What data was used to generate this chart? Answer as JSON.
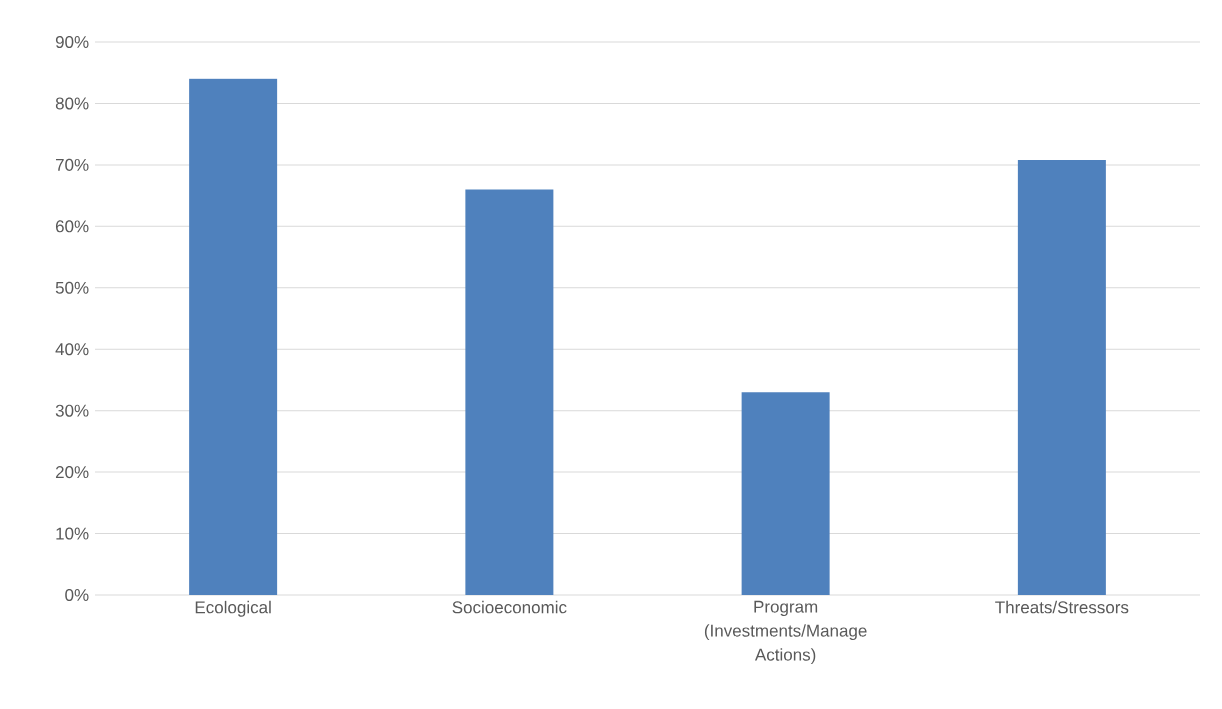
{
  "chart_data": {
    "type": "bar",
    "categories": [
      "Ecological",
      "Socioeconomic",
      "Program (Investments/Manage Actions)",
      "Threats/Stressors"
    ],
    "values": [
      84,
      66,
      33,
      70.8
    ],
    "color": "#4f81bd",
    "ylim": [
      0,
      90
    ],
    "yticks": [
      {
        "value": 0,
        "label": "0%"
      },
      {
        "value": 10,
        "label": "10%"
      },
      {
        "value": 20,
        "label": "20%"
      },
      {
        "value": 30,
        "label": "30%"
      },
      {
        "value": 40,
        "label": "40%"
      },
      {
        "value": 50,
        "label": "50%"
      },
      {
        "value": 60,
        "label": "60%"
      },
      {
        "value": 70,
        "label": "70%"
      },
      {
        "value": 80,
        "label": "80%"
      },
      {
        "value": 90,
        "label": "90%"
      }
    ],
    "grid": "y"
  }
}
